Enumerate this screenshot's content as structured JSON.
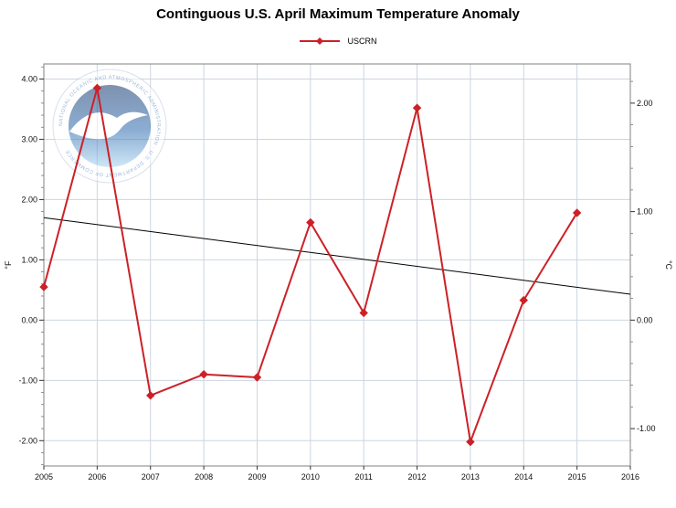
{
  "title": "Continguous U.S. April Maximum Temperature Anomaly",
  "legend": {
    "label": "USCRN",
    "color": "#cc2127",
    "marker": "diamond"
  },
  "axes": {
    "left_unit": "°F",
    "right_unit": "°C",
    "x_tick_labels": [
      "2005",
      "2006",
      "2007",
      "2008",
      "2009",
      "2010",
      "2011",
      "2012",
      "2013",
      "2014",
      "2015",
      "2016"
    ],
    "left_tick_labels": [
      "4.00",
      "3.00",
      "2.00",
      "1.00",
      "0.00",
      "-1.00",
      "-2.00"
    ],
    "right_tick_labels": [
      "2.00",
      "1.00",
      "0.00",
      "-1.00"
    ]
  },
  "watermark": {
    "text": "NOAA",
    "ring_text": "NATIONAL OCEANIC AND ATMOSPHERIC ADMINISTRATION · U.S. DEPARTMENT OF COMMERCE"
  },
  "chart_data": {
    "type": "line",
    "title": "Continguous U.S. April Maximum Temperature Anomaly",
    "x": [
      2005,
      2006,
      2007,
      2008,
      2009,
      2010,
      2011,
      2012,
      2013,
      2014,
      2015
    ],
    "series": [
      {
        "name": "USCRN",
        "color": "#cc2127",
        "marker": "diamond",
        "width": 2,
        "values": [
          0.55,
          3.85,
          -1.25,
          -0.9,
          -0.95,
          1.62,
          0.12,
          3.52,
          -2.02,
          0.33,
          1.78
        ]
      },
      {
        "name": "trend",
        "color": "#000000",
        "x": [
          2005,
          2016
        ],
        "values": [
          1.7,
          0.43
        ],
        "width": 1
      }
    ],
    "xlabel": "",
    "ylabel_left": "°F",
    "ylabel_right": "°C",
    "xlim": [
      2005,
      2016
    ],
    "ylim_f": [
      -2.42,
      4.25
    ],
    "grid": true,
    "legend_position": "top-center"
  }
}
